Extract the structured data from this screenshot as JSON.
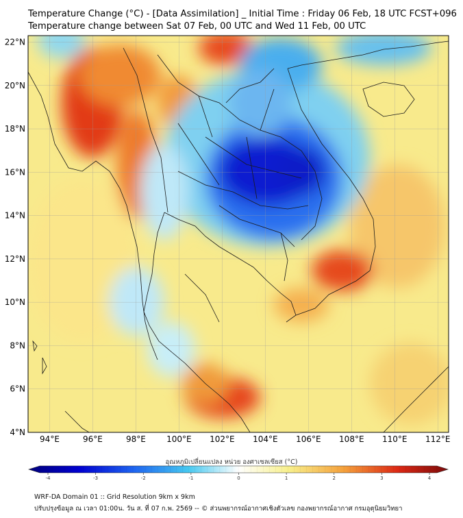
{
  "header": {
    "title_line1": "Temperature Change (°C) - [Data Assimilation] _ Initial Time : Friday 06 Feb, 18 UTC FCST+096",
    "title_line2": "Temperature change between Sat 07 Feb, 00 UTC and Wed 11 Feb, 00 UTC"
  },
  "map": {
    "lat_labels": [
      "22°N",
      "20°N",
      "18°N",
      "16°N",
      "14°N",
      "12°N",
      "10°N",
      "8°N",
      "6°N",
      "4°N"
    ],
    "lon_labels": [
      "94°E",
      "96°E",
      "98°E",
      "100°E",
      "102°E",
      "104°E",
      "106°E",
      "108°E",
      "110°E",
      "112°E"
    ],
    "lat_range": [
      4,
      22.3
    ],
    "lon_range": [
      93,
      112.5
    ],
    "colors": {
      "deep_blue": "#0000b4",
      "blue": "#1e5ff0",
      "cyan": "#46c8f0",
      "light": "#e6f8ff",
      "yellow": "#f8f0a0",
      "orange": "#f5a23c",
      "red": "#dc2814",
      "dark_red": "#7c0a0a"
    }
  },
  "colorbar": {
    "label": "อุณหภูมิเปลี่ยนแปลง หน่วย องศาเซลเซียส (°C)",
    "ticks": [
      "-4",
      "-3",
      "-2",
      "-1",
      "0",
      "1",
      "2",
      "3",
      "4"
    ],
    "min": -4,
    "max": 4
  },
  "footer": {
    "line1": "WRF-DA Domain 01 :: Grid Resolution 9km x 9km",
    "line2": "ปรับปรุงข้อมูล ณ เวลา 01:00น. วัน ส. ที่ 07 ก.พ. 2569 -- © ส่วนพยากรณ์อากาศเชิงตัวเลข กองพยากรณ์อากาศ กรมอุตุนิยมวิทยา"
  }
}
